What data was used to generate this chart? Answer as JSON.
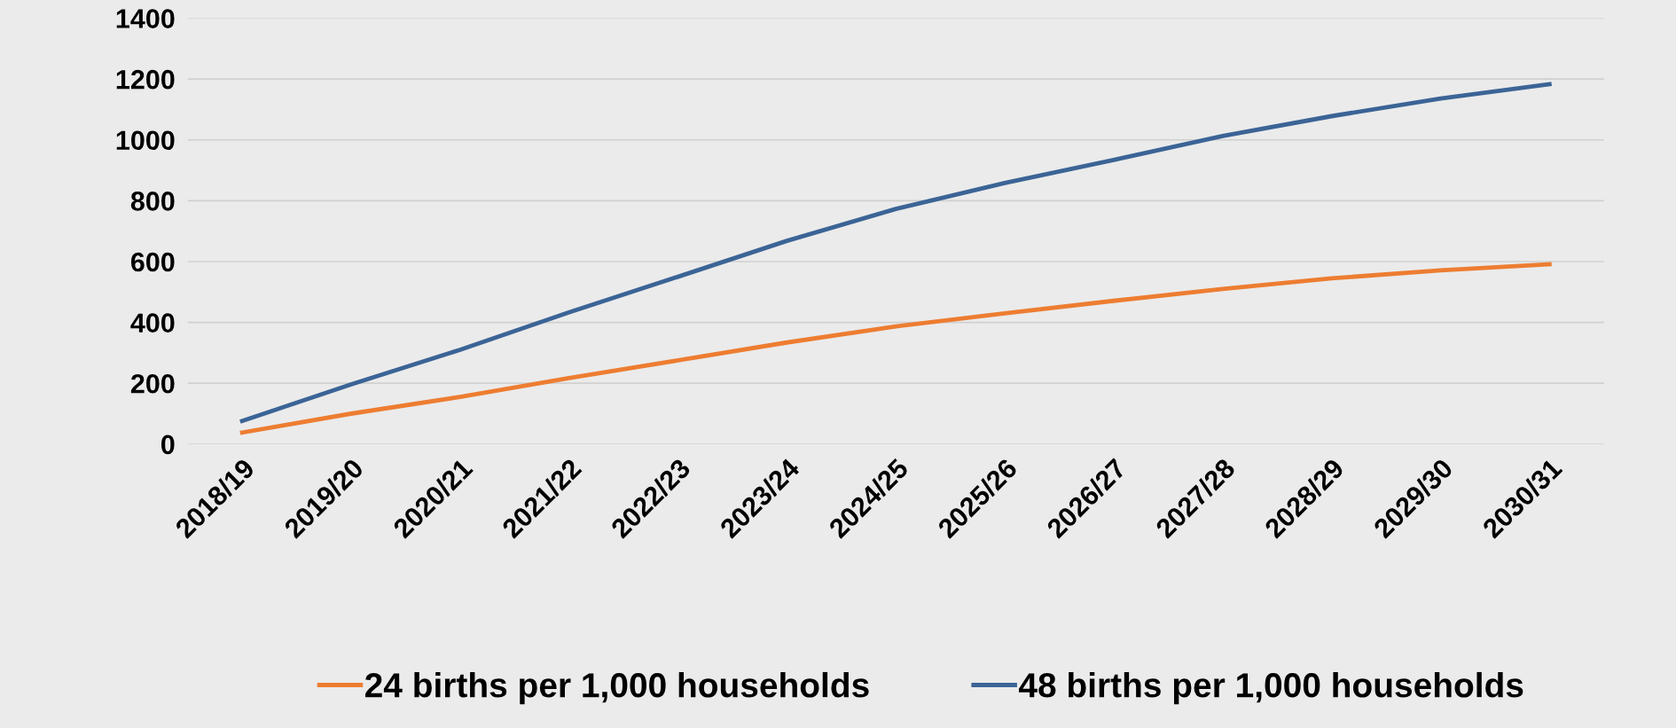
{
  "chart_data": {
    "type": "line",
    "categories": [
      "2018/19",
      "2019/20",
      "2020/21",
      "2021/22",
      "2022/23",
      "2023/24",
      "2024/25",
      "2025/26",
      "2026/27",
      "2027/28",
      "2028/29",
      "2029/30",
      "2030/31"
    ],
    "series": [
      {
        "name": "24 births per 1,000 households",
        "color": "#ed7d31",
        "values": [
          38,
          100,
          155,
          217,
          275,
          334,
          387,
          430,
          471,
          510,
          545,
          571,
          591
        ]
      },
      {
        "name": "48 births per 1,000 households",
        "color": "#3b6496",
        "values": [
          76,
          196,
          310,
          433,
          550,
          668,
          773,
          858,
          934,
          1013,
          1078,
          1136,
          1183
        ]
      }
    ],
    "ylim": [
      0,
      1400
    ],
    "yticks": [
      0,
      200,
      400,
      600,
      800,
      1000,
      1200,
      1400
    ],
    "grid": "y",
    "legend": "bottom",
    "marker": "none",
    "line_style": "solid"
  }
}
